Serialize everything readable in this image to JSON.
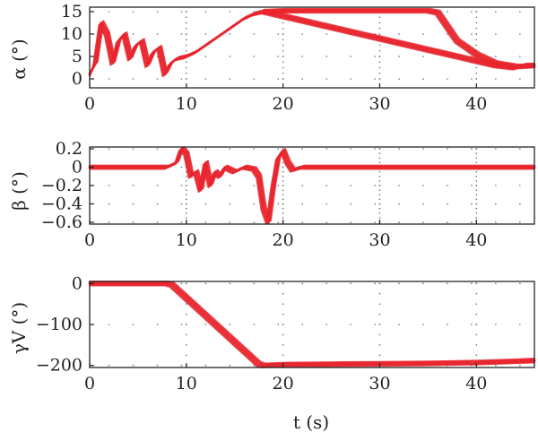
{
  "chart_data": [
    {
      "type": "line",
      "ylabel": "α (°)",
      "xlabel": "",
      "xlim": [
        0,
        46
      ],
      "ylim": [
        -2,
        16
      ],
      "xticks": [
        "0",
        "10",
        "20",
        "30",
        "40"
      ],
      "yticks": [
        "0",
        "5",
        "10",
        "15"
      ],
      "color": "#e8262e",
      "grid": "dotted",
      "series": [
        {
          "x": [
            0,
            0.6,
            1.2,
            1.8,
            2.4,
            3.0,
            3.6,
            4.2,
            4.8,
            5.4,
            6.0,
            6.6,
            7.2,
            7.8,
            8.4,
            9.0,
            10,
            11,
            12,
            13,
            14,
            15,
            16,
            17,
            18,
            19,
            20,
            22,
            24,
            26,
            28,
            30,
            32,
            34,
            36,
            38,
            40,
            42,
            44,
            45,
            46
          ],
          "y": [
            1.0,
            3.5,
            12.5,
            10.0,
            3.5,
            8.5,
            10.0,
            4.5,
            7.5,
            8.5,
            3.0,
            6.0,
            7.0,
            1.0,
            3.5,
            4.5,
            5.0,
            6.0,
            7.5,
            9.0,
            10.5,
            12.0,
            13.5,
            14.5,
            15.0,
            14.5,
            14.0,
            13.0,
            12.0,
            11.0,
            10.0,
            9.0,
            8.0,
            7.0,
            6.0,
            5.0,
            4.0,
            3.0,
            2.5,
            3.0,
            3.0
          ]
        },
        {
          "x": [
            18,
            20,
            25,
            30,
            33,
            34,
            35,
            36,
            38,
            40,
            42,
            44,
            45,
            46
          ],
          "y": [
            15.0,
            15.2,
            15.2,
            15.2,
            15.2,
            15.2,
            15.2,
            14.8,
            8.5,
            5.5,
            3.5,
            2.8,
            2.8,
            3.0
          ]
        }
      ]
    },
    {
      "type": "line",
      "ylabel": "β (°)",
      "xlabel": "",
      "xlim": [
        0,
        46
      ],
      "ylim": [
        -0.62,
        0.22
      ],
      "xticks": [
        "0",
        "10",
        "20",
        "30",
        "40"
      ],
      "yticks": [
        "0.2",
        "0",
        "−0.2",
        "−0.4",
        "−0.6"
      ],
      "color": "#e8262e",
      "grid": "dotted",
      "series": [
        {
          "x": [
            0,
            8,
            9,
            9.5,
            10,
            10.5,
            11,
            11.5,
            12,
            12.5,
            13,
            13.5,
            14,
            15,
            16,
            17,
            17.5,
            18,
            18.5,
            19,
            19.5,
            20,
            20.5,
            21,
            22,
            25,
            30,
            35,
            40,
            46
          ],
          "y": [
            0,
            0,
            0.05,
            0.2,
            0.15,
            -0.1,
            -0.05,
            -0.25,
            0.05,
            -0.2,
            -0.05,
            -0.1,
            0.0,
            -0.05,
            0.0,
            -0.02,
            -0.1,
            -0.45,
            -0.6,
            -0.2,
            0.1,
            0.18,
            0.05,
            -0.03,
            0.0,
            0.0,
            0.0,
            0.0,
            0.0,
            0.0
          ]
        }
      ]
    },
    {
      "type": "line",
      "ylabel": "γV (°)",
      "xlabel": "t (s)",
      "xlim": [
        0,
        46
      ],
      "ylim": [
        -205,
        5
      ],
      "xticks": [
        "0",
        "10",
        "20",
        "30",
        "40"
      ],
      "yticks": [
        "0",
        "−100",
        "−200"
      ],
      "color": "#e8262e",
      "grid": "dotted",
      "series": [
        {
          "x": [
            0,
            8,
            8.5,
            17.5,
            18,
            20,
            25,
            30,
            35,
            40,
            44,
            46
          ],
          "y": [
            0,
            0,
            -3,
            -197,
            -200,
            -198,
            -197,
            -196,
            -195,
            -193,
            -190,
            -188
          ]
        }
      ]
    }
  ]
}
